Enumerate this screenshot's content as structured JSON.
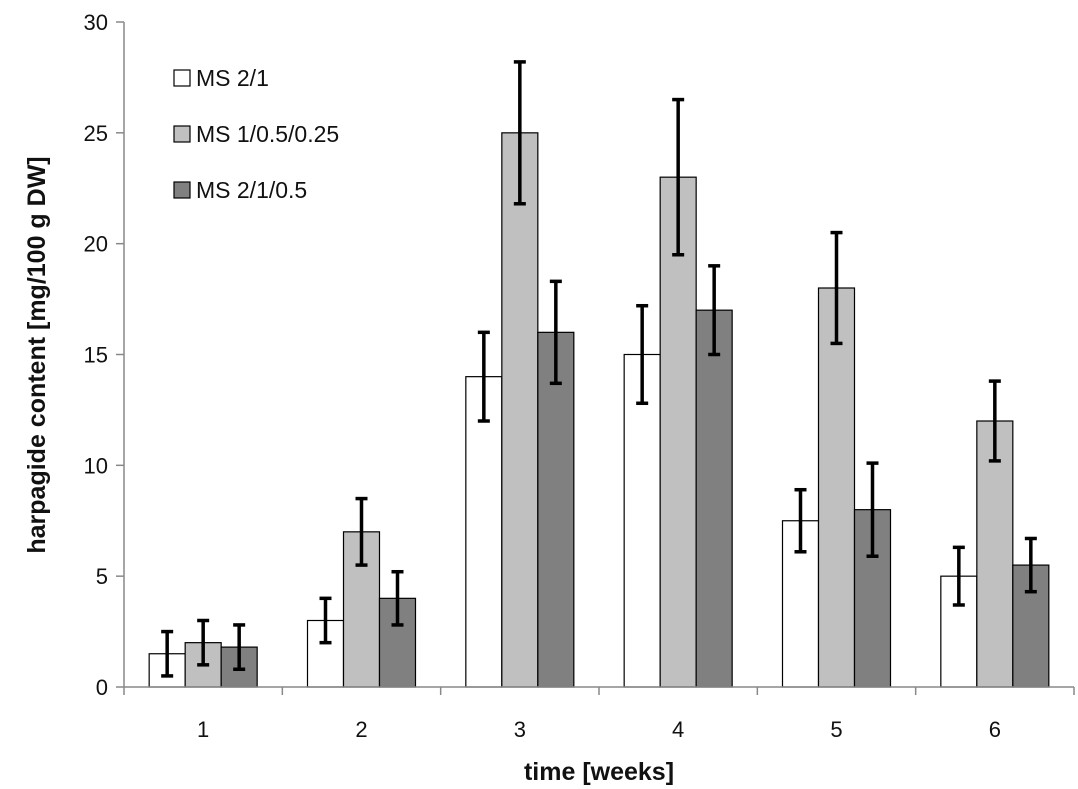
{
  "chart_data": {
    "type": "bar",
    "categories": [
      "1",
      "2",
      "3",
      "4",
      "5",
      "6"
    ],
    "series": [
      {
        "name": "MS 2/1",
        "values": [
          1.5,
          3.0,
          14.0,
          15.0,
          7.5,
          5.0
        ],
        "errors": [
          1.0,
          1.0,
          2.0,
          2.2,
          1.4,
          1.3
        ],
        "color": "#ffffff"
      },
      {
        "name": "MS 1/0.5/0.25",
        "values": [
          2.0,
          7.0,
          25.0,
          23.0,
          18.0,
          12.0
        ],
        "errors": [
          1.0,
          1.5,
          3.2,
          3.5,
          2.5,
          1.8
        ],
        "color": "#c0c0c0"
      },
      {
        "name": "MS 2/1/0.5",
        "values": [
          1.8,
          4.0,
          16.0,
          17.0,
          8.0,
          5.5
        ],
        "errors": [
          1.0,
          1.2,
          2.3,
          2.0,
          2.1,
          1.2
        ],
        "color": "#808080"
      }
    ],
    "title": "",
    "xlabel": "time [weeks]",
    "ylabel": "harpagide content [mg/100 g DW]",
    "ylim": [
      0,
      30
    ],
    "yticks": [
      0,
      5,
      10,
      15,
      20,
      25,
      30
    ],
    "grid": false,
    "legend_position": "top-left"
  }
}
